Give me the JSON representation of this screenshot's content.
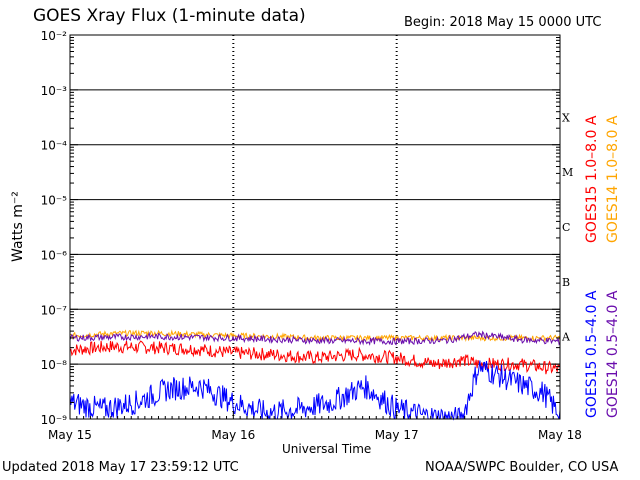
{
  "header": {
    "title": "GOES Xray Flux (1-minute data)",
    "begin": "Begin:  2018 May 15 0000 UTC"
  },
  "footer": {
    "updated": "Updated 2018 May 17 23:59:12 UTC",
    "credit": "NOAA/SWPC Boulder, CO USA"
  },
  "chart_data": {
    "type": "line",
    "title": "GOES Xray Flux (1-minute data)",
    "xlabel": "Universal Time",
    "ylabel": "Watts m⁻²",
    "y_scale": "log",
    "ylim": [
      1e-09,
      0.01
    ],
    "y_ticks": [
      {
        "value": 1e-09,
        "label": "10⁻⁹"
      },
      {
        "value": 1e-08,
        "label": "10⁻⁸"
      },
      {
        "value": 1e-07,
        "label": "10⁻⁷"
      },
      {
        "value": 1e-06,
        "label": "10⁻⁶"
      },
      {
        "value": 1e-05,
        "label": "10⁻⁵"
      },
      {
        "value": 0.0001,
        "label": "10⁻⁴"
      },
      {
        "value": 0.001,
        "label": "10⁻³"
      },
      {
        "value": 0.01,
        "label": "10⁻²"
      }
    ],
    "x_ticks": [
      "May 15",
      "May 16",
      "May 17",
      "May 18"
    ],
    "xlim_days": [
      0,
      3
    ],
    "flare_classes": [
      {
        "label": "X",
        "lower": 0.0001
      },
      {
        "label": "M",
        "lower": 1e-05
      },
      {
        "label": "C",
        "lower": 1e-06
      },
      {
        "label": "B",
        "lower": 1e-07
      },
      {
        "label": "A",
        "lower": 1e-08
      }
    ],
    "grid": true,
    "legend_position": "right",
    "series": [
      {
        "name": "GOES15 1.0–8.0 A",
        "color": "#ff0000",
        "x": [
          0,
          0.25,
          0.5,
          0.75,
          1.0,
          1.25,
          1.5,
          1.75,
          2.0,
          2.25,
          2.4,
          2.5,
          2.75,
          3.0
        ],
        "y": [
          1.8e-08,
          2.1e-08,
          2e-08,
          1.9e-08,
          1.6e-08,
          1.5e-08,
          1.3e-08,
          1.5e-08,
          1.3e-08,
          1e-08,
          1.2e-08,
          1e-08,
          1e-08,
          8e-09
        ]
      },
      {
        "name": "GOES14 1.0–8.0 A",
        "color": "#ffa500",
        "x": [
          0,
          0.25,
          0.5,
          0.75,
          1.0,
          1.25,
          1.5,
          1.75,
          2.0,
          2.25,
          2.5,
          2.75,
          3.0
        ],
        "y": [
          3.3e-08,
          3.6e-08,
          3.7e-08,
          3.5e-08,
          3.3e-08,
          3.2e-08,
          3e-08,
          3e-08,
          3e-08,
          3e-08,
          3e-08,
          3e-08,
          3e-08
        ]
      },
      {
        "name": "GOES15 0.5–4.0 A",
        "color": "#0000ff",
        "x": [
          0,
          0.2,
          0.4,
          0.6,
          0.8,
          1.0,
          1.2,
          1.4,
          1.6,
          1.8,
          2.0,
          2.2,
          2.4,
          2.5,
          2.7,
          2.9,
          3.0
        ],
        "y": [
          2e-09,
          1.5e-09,
          2e-09,
          3.5e-09,
          4e-09,
          2e-09,
          1.3e-09,
          1.5e-09,
          2e-09,
          4e-09,
          1.5e-09,
          1.1e-09,
          1e-09,
          9e-09,
          5e-09,
          3e-09,
          1.2e-09
        ]
      },
      {
        "name": "GOES14 0.5–4.0 A",
        "color": "#6a0dad",
        "x": [
          0,
          0.5,
          1.0,
          1.5,
          2.0,
          2.3,
          2.5,
          2.75,
          3.0
        ],
        "y": [
          3e-08,
          3.2e-08,
          3e-08,
          2.7e-08,
          2.6e-08,
          2.7e-08,
          3.5e-08,
          2.8e-08,
          2.6e-08
        ]
      }
    ]
  }
}
